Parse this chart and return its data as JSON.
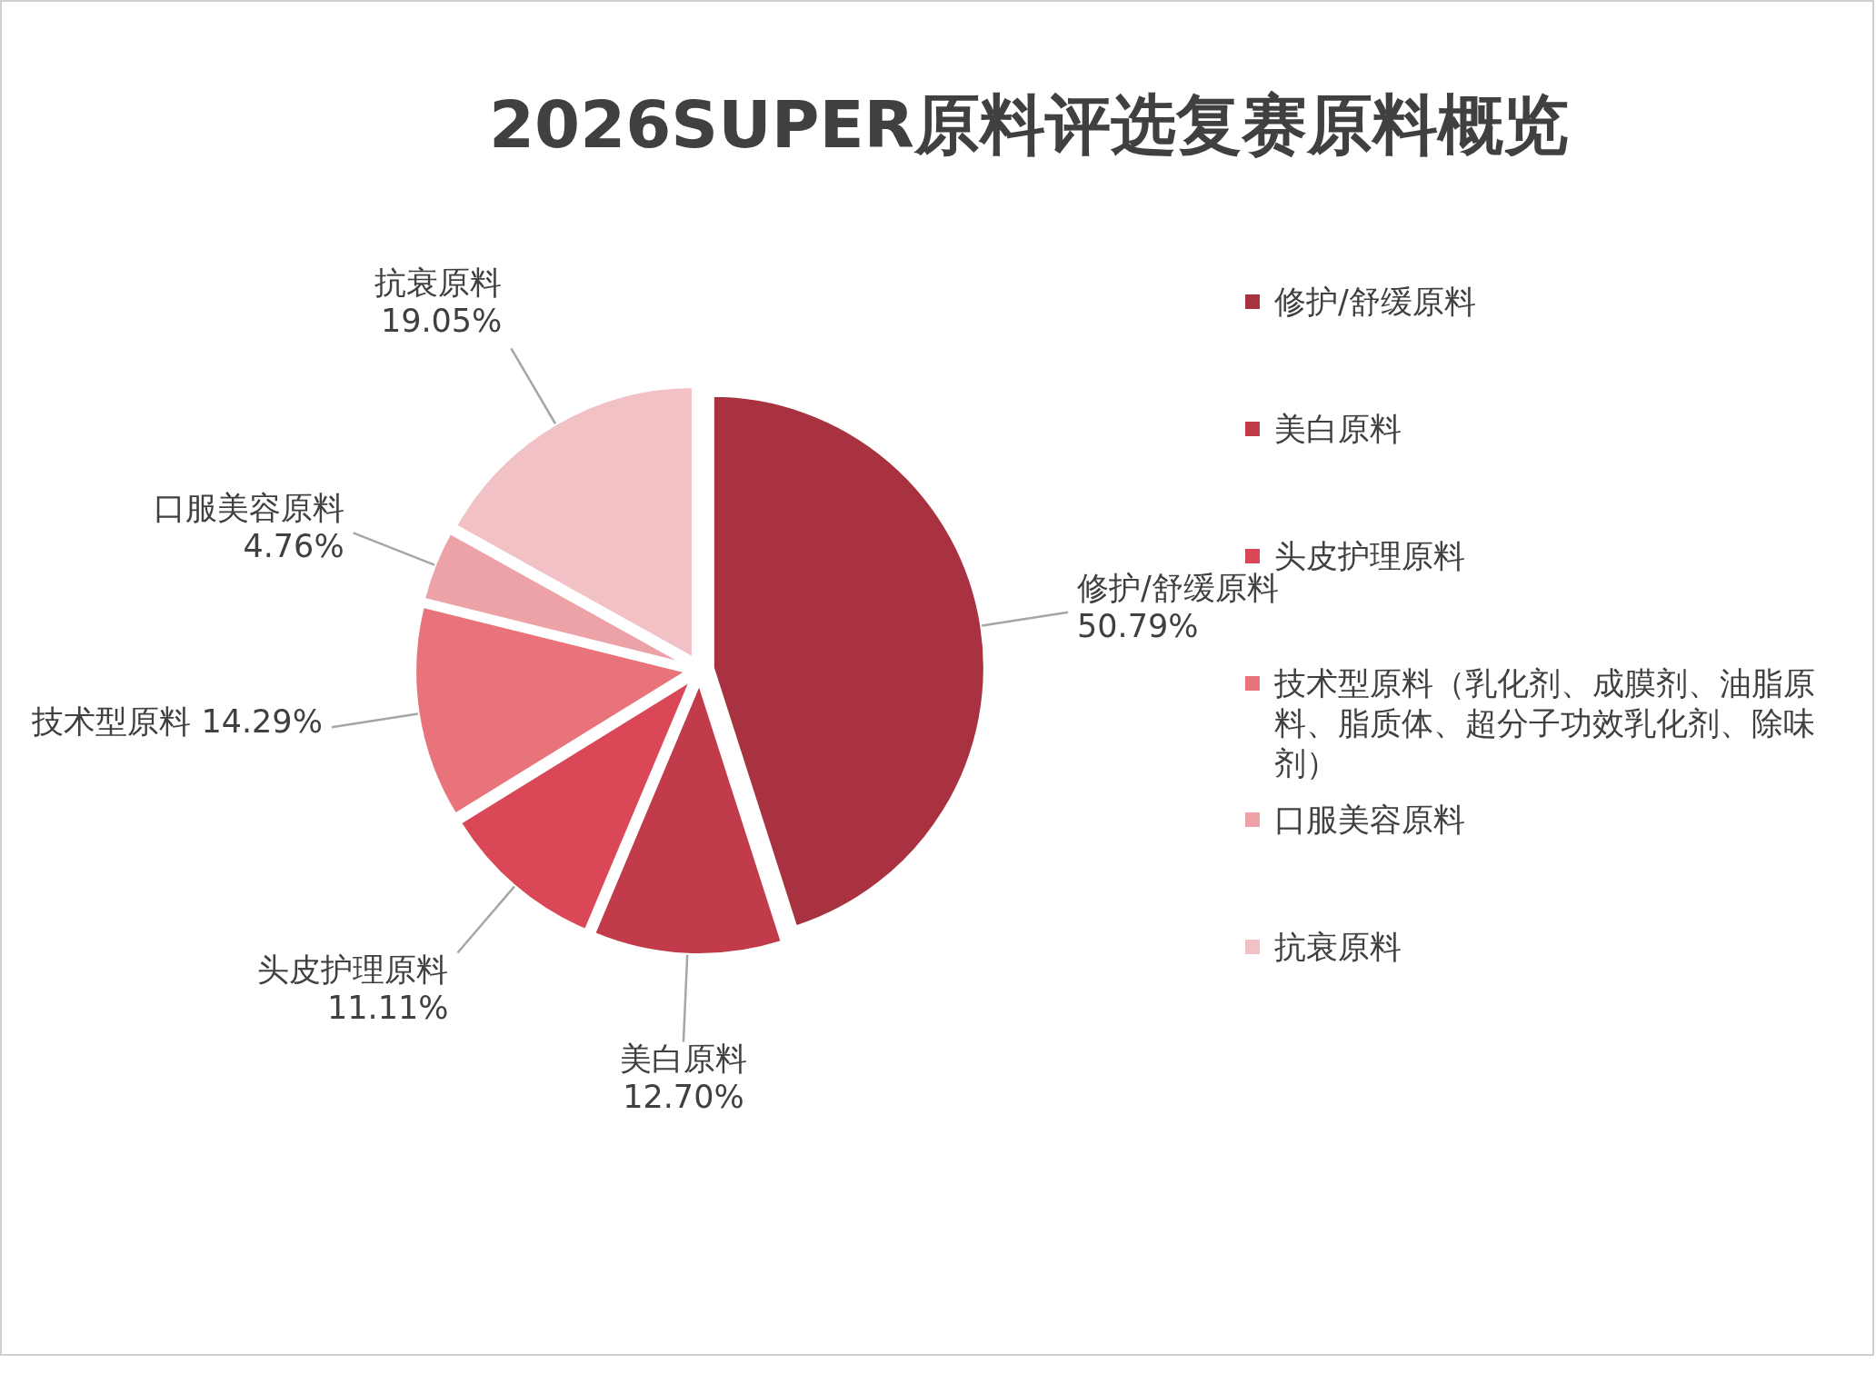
{
  "chart_data": {
    "type": "pie",
    "title": "2026SUPER原料评选复赛原料概览",
    "categories": [
      "修护/舒缓原料",
      "美白原料",
      "头皮护理原料",
      "技术型原料（乳化剂、成膜剂、油脂原料、脂质体、超分子功效乳化剂、除味剂）",
      "口服美容原料",
      "抗衰原料"
    ],
    "values": [
      50.79,
      12.7,
      11.11,
      14.29,
      4.76,
      19.05
    ],
    "value_labels": [
      "50.79%",
      "12.70%",
      "11.11%",
      "技术型原料 14.29%",
      "4.76%",
      "19.05%"
    ],
    "colors": [
      "#a8323f",
      "#c23b4b",
      "#da4858",
      "#e8737b",
      "#eda2a7",
      "#f2c1c5"
    ],
    "data_labels": true,
    "legend": "right"
  }
}
